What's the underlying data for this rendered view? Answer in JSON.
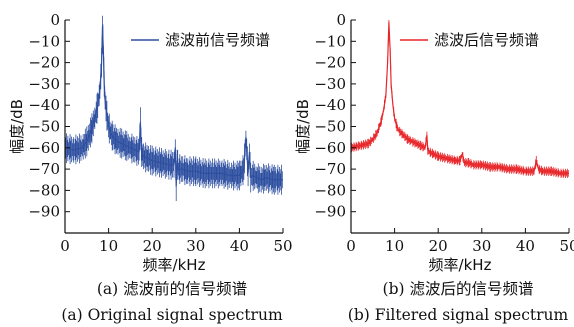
{
  "chart_data": [
    {
      "type": "line",
      "xlabel": "频率/kHz",
      "ylabel": "幅度/dB",
      "xlim": [
        0,
        50
      ],
      "ylim": [
        -100,
        0
      ],
      "x_ticks": [
        "0",
        "10",
        "20",
        "30",
        "40",
        "50"
      ],
      "y_ticks": [
        "0",
        "−10",
        "−20",
        "−30",
        "−40",
        "−50",
        "−60",
        "−70",
        "−80",
        "−90"
      ],
      "legend_placement": "top-right",
      "grid": false,
      "caption_cn": "(a) 滤波前的信号频谱",
      "caption_en": "(a) Original signal spectrum",
      "series": [
        {
          "name": "滤波前信号频谱",
          "color": "#2e4fa0",
          "x": [
            0,
            2,
            4,
            5,
            6,
            7,
            7.5,
            8,
            8.4,
            8.6,
            8.8,
            9,
            9.2,
            9.6,
            10,
            10.5,
            11,
            12,
            13,
            14,
            15,
            16,
            17,
            17.3,
            17.5,
            17.7,
            18,
            19,
            20,
            22,
            24,
            25,
            25.3,
            25.5,
            25.7,
            26,
            27,
            28,
            30,
            32,
            34,
            36,
            38,
            40,
            41,
            41.5,
            42,
            42.3,
            42.6,
            43,
            44,
            45,
            46,
            48,
            50
          ],
          "values": [
            -60,
            -61,
            -60,
            -57,
            -52,
            -45,
            -40,
            -33,
            -20,
            -3,
            -15,
            -30,
            -38,
            -45,
            -50,
            -53,
            -55,
            -57,
            -58,
            -59,
            -60,
            -61,
            -62,
            -48,
            -61,
            -63,
            -64,
            -65,
            -66,
            -67,
            -68,
            -68,
            -60,
            -78,
            -66,
            -70,
            -70,
            -71,
            -71,
            -72,
            -72,
            -72,
            -73,
            -73,
            -70,
            -55,
            -72,
            -62,
            -74,
            -73,
            -74,
            -75,
            -74,
            -75,
            -75
          ]
        }
      ]
    },
    {
      "type": "line",
      "xlabel": "频率/kHz",
      "ylabel": "幅度/dB",
      "xlim": [
        0,
        50
      ],
      "ylim": [
        -100,
        0
      ],
      "x_ticks": [
        "0",
        "10",
        "20",
        "30",
        "40",
        "50"
      ],
      "y_ticks": [
        "0",
        "−10",
        "−20",
        "−30",
        "−40",
        "−50",
        "−60",
        "−70",
        "−80",
        "−90"
      ],
      "legend_placement": "top-right",
      "grid": false,
      "caption_cn": "(b) 滤波后的信号频谱",
      "caption_en": "(b) Filtered signal spectrum",
      "series": [
        {
          "name": "滤波后信号频谱",
          "color": "#e8262a",
          "x": [
            0,
            2,
            4,
            5,
            6,
            7,
            7.5,
            8,
            8.4,
            8.7,
            9,
            9.2,
            9.6,
            10,
            10.5,
            11,
            12,
            13,
            14,
            15,
            16,
            17,
            17.4,
            17.6,
            18,
            19,
            20,
            22,
            24,
            25,
            25.5,
            26,
            27,
            28,
            30,
            32,
            34,
            36,
            38,
            40,
            42,
            42.5,
            43,
            44,
            46,
            48,
            50
          ],
          "values": [
            -60,
            -59,
            -58,
            -56,
            -53,
            -47,
            -42,
            -35,
            -20,
            -1,
            -15,
            -30,
            -40,
            -46,
            -50,
            -52,
            -54,
            -56,
            -57,
            -58,
            -59,
            -60,
            -54,
            -61,
            -62,
            -63,
            -64,
            -65,
            -66,
            -66,
            -63,
            -67,
            -67,
            -68,
            -68,
            -69,
            -69,
            -70,
            -70,
            -71,
            -71,
            -66,
            -70,
            -71,
            -71,
            -72,
            -72
          ]
        }
      ]
    }
  ]
}
